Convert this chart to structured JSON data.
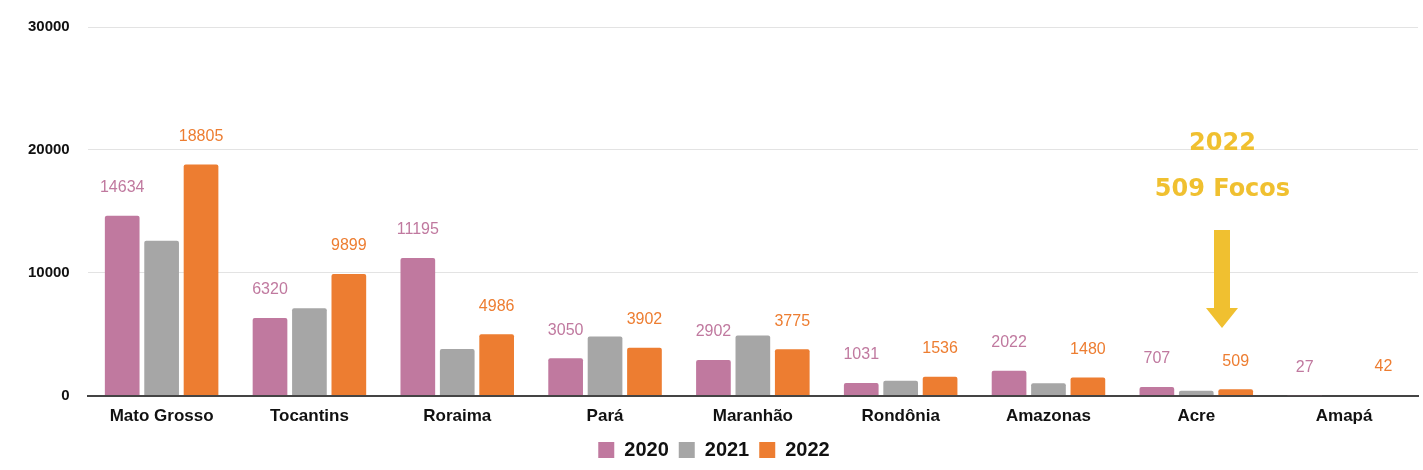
{
  "chart_data": {
    "type": "bar",
    "categories": [
      "Mato Grosso",
      "Tocantins",
      "Roraima",
      "Pará",
      "Maranhão",
      "Rondônia",
      "Amazonas",
      "Acre",
      "Amapá"
    ],
    "series": [
      {
        "name": "2020",
        "color": "#c0799f",
        "values": [
          14634,
          6320,
          11195,
          3050,
          2902,
          1031,
          2022,
          707,
          27
        ],
        "value_labels": [
          "14634",
          "6320",
          "11195",
          "3050",
          "2902",
          "1031",
          "2022",
          "707",
          "27"
        ]
      },
      {
        "name": "2021",
        "color": "#a6a6a6",
        "values": [
          12600,
          7100,
          3800,
          4800,
          4900,
          1200,
          1000,
          400,
          0
        ]
      },
      {
        "name": "2022",
        "color": "#ed7d31",
        "values": [
          18805,
          9899,
          4986,
          3902,
          3775,
          1536,
          1480,
          509,
          42
        ],
        "value_labels": [
          "18805",
          "9899",
          "4986",
          "3902",
          "3775",
          "1536",
          "1480",
          "509",
          "42"
        ]
      }
    ],
    "ylim": [
      0,
      30000
    ],
    "yticks": [
      0,
      10000,
      20000,
      30000
    ],
    "grid": "y",
    "legend": "bottom",
    "annotations": [
      "2022\n509 Focos"
    ]
  }
}
